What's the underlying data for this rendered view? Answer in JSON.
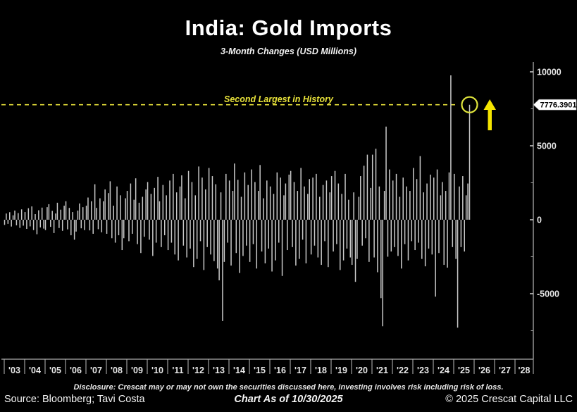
{
  "title": "India: Gold Imports",
  "subtitle": "3-Month Changes (USD Millions)",
  "annotation": {
    "label": "Second Largest in History",
    "value_label": "7776.3901",
    "line_value": 7776.3901,
    "line_color": "#e8e23a",
    "circle_color": "#dfe43c",
    "arrow_color": "#f5e500",
    "callout_bg": "#ffffff",
    "callout_text_color": "#000000"
  },
  "footer": {
    "disclosure": "Disclosure: Crescat may or may not own the securities discussed here, investing involves risk including risk of loss.",
    "source": "Source: Bloomberg; Tavi Costa",
    "as_of": "Chart As of 10/30/2025",
    "copyright": "© 2025 Crescat Capital LLC"
  },
  "chart_data": {
    "type": "bar",
    "title": "India: Gold Imports",
    "subtitle": "3-Month Changes (USD Millions)",
    "xlabel": "",
    "ylabel": "USD Millions (3-month change)",
    "background": "#000000",
    "bar_color": "#c9c9c9",
    "axis_color": "#ababab",
    "grid": false,
    "legend": "none",
    "x_start": {
      "year": 2003,
      "month": 1
    },
    "x_end": {
      "year": 2025,
      "month": 10
    },
    "x_tick_labels": [
      "'03",
      "'04",
      "'05",
      "'06",
      "'07",
      "'08",
      "'09",
      "'10",
      "'11",
      "'12",
      "'13",
      "'14",
      "'15",
      "'16",
      "'17",
      "'18",
      "'19",
      "'20",
      "'21",
      "'22",
      "'23",
      "'24",
      "'25",
      "'26",
      "'27",
      "'28"
    ],
    "y_axis": {
      "side": "right",
      "major_ticks": [
        10000,
        5000,
        0,
        -5000
      ],
      "minor_ticks": [
        7500,
        2500,
        -2500,
        -7500
      ],
      "range": [
        -9400,
        10650
      ]
    },
    "highlight": {
      "largest_value": 9760,
      "largest_month": "2024-11",
      "second_largest_value": 7776.3901,
      "second_largest_month": "2025-10"
    },
    "values": [
      -350,
      420,
      -280,
      510,
      -460,
      300,
      620,
      -380,
      450,
      -550,
      700,
      -400,
      520,
      -620,
      780,
      -450,
      900,
      -700,
      380,
      -980,
      640,
      -520,
      820,
      -600,
      -700,
      850,
      1050,
      -480,
      600,
      -900,
      420,
      1150,
      -560,
      680,
      -750,
      950,
      1250,
      -650,
      800,
      -1050,
      520,
      -1350,
      -800,
      620,
      1100,
      -580,
      850,
      -700,
      950,
      1500,
      -720,
      1250,
      -950,
      2400,
      800,
      -640,
      1450,
      -850,
      1250,
      2050,
      -950,
      1800,
      2600,
      -1250,
      950,
      -1550,
      2250,
      -1050,
      1650,
      -2050,
      -1250,
      1450,
      1950,
      -1450,
      2450,
      -950,
      1350,
      2800,
      -1650,
      1150,
      -2250,
      1550,
      -1150,
      2050,
      2550,
      -1350,
      1750,
      -2450,
      2150,
      -1550,
      2900,
      1250,
      -1850,
      2350,
      -1050,
      1650,
      -2050,
      2650,
      -1550,
      3100,
      -2350,
      1850,
      -2750,
      2250,
      3000,
      -1750,
      1450,
      -2550,
      3300,
      -1950,
      2550,
      -3200,
      1650,
      -2650,
      3600,
      -1450,
      2850,
      -3400,
      2050,
      -1850,
      3500,
      -2350,
      2950,
      -2800,
      2400,
      -3300,
      -4100,
      1850,
      -6850,
      -2850,
      3100,
      -1550,
      2650,
      -3100,
      1950,
      3800,
      -2250,
      2700,
      -3600,
      1550,
      -2450,
      3200,
      -1750,
      2350,
      -2850,
      3400,
      -1650,
      2550,
      -3300,
      1950,
      3700,
      -2150,
      1450,
      -2950,
      2650,
      -1950,
      2250,
      -3500,
      1750,
      -2750,
      3200,
      -1550,
      2850,
      -3800,
      1650,
      2450,
      -2050,
      3050,
      3300,
      -1850,
      2550,
      -3100,
      1950,
      -2650,
      3500,
      -1350,
      2250,
      -2950,
      1750,
      2750,
      -2350,
      2850,
      -1750,
      3100,
      -2550,
      1550,
      -3050,
      2350,
      -1450,
      2650,
      -3200,
      1850,
      2950,
      -2150,
      3300,
      -1650,
      2450,
      -3400,
      1750,
      -2750,
      3100,
      -1950,
      1350,
      -2550,
      -3050,
      1850,
      -4200,
      -2650,
      1550,
      2950,
      -1750,
      3650,
      -1250,
      4400,
      -2850,
      2150,
      4400,
      -2550,
      4800,
      -3550,
      2250,
      -5300,
      -7200,
      1950,
      6300,
      -2500,
      3400,
      -2150,
      2650,
      -1850,
      3100,
      -2450,
      1550,
      -3300,
      2850,
      -1650,
      2250,
      -2750,
      1950,
      -1450,
      3500,
      -2050,
      2750,
      -1550,
      4300,
      -2650,
      1850,
      -3150,
      2450,
      -1950,
      3050,
      -2350,
      2850,
      -5200,
      3400,
      -2250,
      1650,
      2550,
      -3050,
      1950,
      -3240,
      3200,
      9760,
      -1850,
      3100,
      -2650,
      -7300,
      2250,
      -1850,
      2950,
      -2150,
      1650,
      2450,
      7776.3901
    ]
  }
}
